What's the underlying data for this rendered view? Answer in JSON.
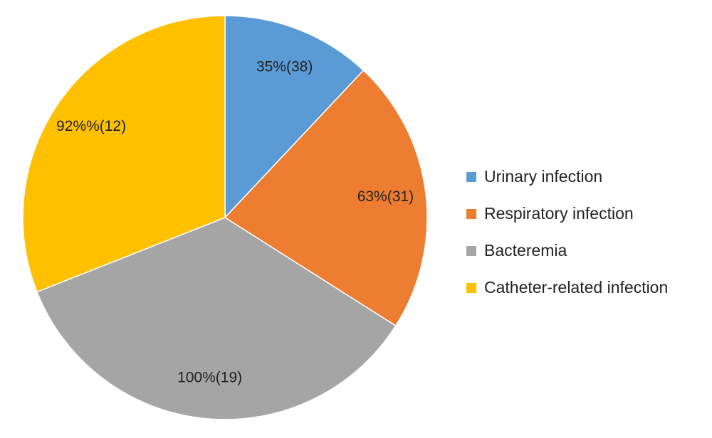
{
  "chart_data": {
    "type": "pie",
    "categories": [
      "Urinary infection",
      "Respiratory infection",
      "Bacteremia",
      "Catheter-related infection"
    ],
    "values": [
      12,
      22,
      35,
      31
    ],
    "data_labels": [
      "35%(38)",
      "63%(31)",
      "100%(19)",
      "92%%(12)"
    ],
    "colors": [
      "#5b9bd5",
      "#ed7d31",
      "#a5a5a5",
      "#ffc000"
    ],
    "legend": "right"
  }
}
